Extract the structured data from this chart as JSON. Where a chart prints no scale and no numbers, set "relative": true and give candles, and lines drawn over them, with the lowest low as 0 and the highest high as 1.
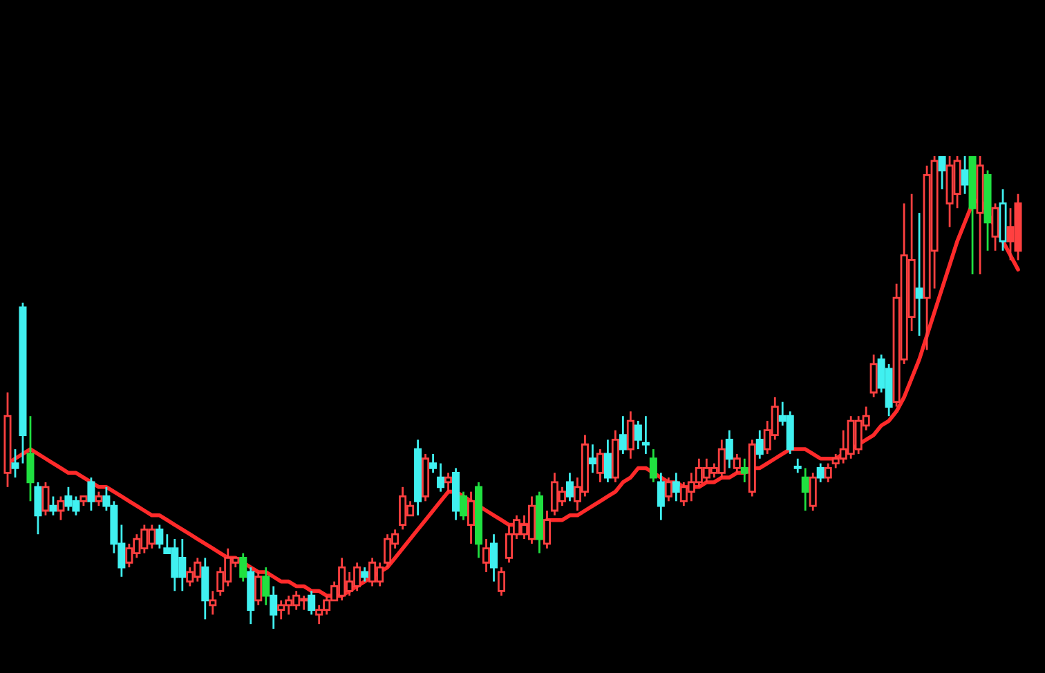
{
  "chart_data": {
    "type": "candlestick",
    "relative": true,
    "legend": false,
    "categories": [
      null,
      null,
      null,
      null,
      null,
      null,
      null,
      null,
      null,
      null,
      null,
      null,
      null,
      null,
      null,
      null,
      null,
      null,
      null,
      null,
      null,
      null,
      null,
      null,
      null,
      null,
      null,
      null,
      null,
      null,
      null,
      null,
      null,
      null,
      null,
      null,
      null,
      null,
      null,
      null,
      null,
      null,
      null,
      null,
      null,
      null,
      null,
      null,
      null,
      null,
      null,
      null,
      null,
      null,
      null,
      null,
      null,
      null,
      null,
      null,
      null,
      null,
      null,
      null,
      null,
      null,
      null,
      null,
      null,
      null,
      null,
      null,
      null,
      null,
      null,
      null,
      null,
      null,
      null,
      null,
      null,
      null,
      null,
      null,
      null,
      null,
      null,
      null,
      null,
      null,
      null,
      null,
      null,
      null,
      null,
      null,
      null,
      null,
      null,
      null,
      null,
      null,
      null,
      null,
      null,
      null,
      null,
      null,
      null,
      null,
      null,
      null,
      null,
      null,
      null,
      null,
      null,
      null,
      null,
      null,
      null,
      null,
      null,
      null,
      null,
      null,
      null,
      null,
      null,
      null,
      null,
      null,
      null,
      null
    ],
    "ohlc": [
      [
        0.33,
        0.5,
        0.3,
        0.45
      ],
      [
        0.35,
        0.38,
        0.32,
        0.34
      ],
      [
        0.68,
        0.69,
        0.35,
        0.41
      ],
      [
        0.37,
        0.45,
        0.27,
        0.31
      ],
      [
        0.3,
        0.31,
        0.2,
        0.24
      ],
      [
        0.25,
        0.31,
        0.24,
        0.3
      ],
      [
        0.26,
        0.28,
        0.24,
        0.25
      ],
      [
        0.25,
        0.28,
        0.23,
        0.27
      ],
      [
        0.28,
        0.3,
        0.25,
        0.26
      ],
      [
        0.27,
        0.28,
        0.24,
        0.25
      ],
      [
        0.27,
        0.28,
        0.26,
        0.28
      ],
      [
        0.31,
        0.32,
        0.25,
        0.27
      ],
      [
        0.27,
        0.29,
        0.26,
        0.28
      ],
      [
        0.28,
        0.3,
        0.25,
        0.26
      ],
      [
        0.26,
        0.27,
        0.16,
        0.18
      ],
      [
        0.18,
        0.22,
        0.11,
        0.13
      ],
      [
        0.14,
        0.18,
        0.13,
        0.17
      ],
      [
        0.16,
        0.2,
        0.15,
        0.19
      ],
      [
        0.17,
        0.22,
        0.16,
        0.21
      ],
      [
        0.18,
        0.22,
        0.17,
        0.21
      ],
      [
        0.21,
        0.22,
        0.17,
        0.18
      ],
      [
        0.17,
        0.2,
        0.16,
        0.16
      ],
      [
        0.17,
        0.19,
        0.08,
        0.11
      ],
      [
        0.15,
        0.19,
        0.08,
        0.11
      ],
      [
        0.1,
        0.13,
        0.09,
        0.12
      ],
      [
        0.11,
        0.15,
        0.1,
        0.14
      ],
      [
        0.13,
        0.15,
        0.02,
        0.06
      ],
      [
        0.05,
        0.08,
        0.03,
        0.06
      ],
      [
        0.08,
        0.13,
        0.07,
        0.12
      ],
      [
        0.1,
        0.17,
        0.09,
        0.15
      ],
      [
        0.14,
        0.15,
        0.13,
        0.15
      ],
      [
        0.15,
        0.16,
        0.1,
        0.11
      ],
      [
        0.12,
        0.13,
        0.01,
        0.04
      ],
      [
        0.06,
        0.12,
        0.05,
        0.11
      ],
      [
        0.11,
        0.13,
        0.05,
        0.07
      ],
      [
        0.07,
        0.09,
        0.0,
        0.03
      ],
      [
        0.04,
        0.06,
        0.02,
        0.05
      ],
      [
        0.05,
        0.07,
        0.03,
        0.06
      ],
      [
        0.05,
        0.08,
        0.04,
        0.07
      ],
      [
        0.06,
        0.07,
        0.04,
        0.06
      ],
      [
        0.07,
        0.08,
        0.03,
        0.04
      ],
      [
        0.03,
        0.05,
        0.01,
        0.04
      ],
      [
        0.04,
        0.07,
        0.03,
        0.06
      ],
      [
        0.06,
        0.1,
        0.06,
        0.09
      ],
      [
        0.07,
        0.15,
        0.06,
        0.13
      ],
      [
        0.08,
        0.12,
        0.07,
        0.1
      ],
      [
        0.09,
        0.14,
        0.08,
        0.13
      ],
      [
        0.12,
        0.13,
        0.1,
        0.11
      ],
      [
        0.1,
        0.15,
        0.09,
        0.14
      ],
      [
        0.1,
        0.14,
        0.09,
        0.13
      ],
      [
        0.14,
        0.2,
        0.13,
        0.19
      ],
      [
        0.18,
        0.21,
        0.17,
        0.2
      ],
      [
        0.22,
        0.3,
        0.21,
        0.28
      ],
      [
        0.24,
        0.27,
        0.24,
        0.26
      ],
      [
        0.38,
        0.4,
        0.24,
        0.27
      ],
      [
        0.28,
        0.37,
        0.27,
        0.36
      ],
      [
        0.35,
        0.37,
        0.33,
        0.34
      ],
      [
        0.32,
        0.35,
        0.29,
        0.3
      ],
      [
        0.31,
        0.33,
        0.29,
        0.32
      ],
      [
        0.33,
        0.34,
        0.23,
        0.25
      ],
      [
        0.28,
        0.29,
        0.23,
        0.24
      ],
      [
        0.22,
        0.29,
        0.18,
        0.27
      ],
      [
        0.3,
        0.31,
        0.15,
        0.18
      ],
      [
        0.14,
        0.19,
        0.12,
        0.17
      ],
      [
        0.18,
        0.2,
        0.1,
        0.13
      ],
      [
        0.08,
        0.13,
        0.07,
        0.12
      ],
      [
        0.15,
        0.22,
        0.14,
        0.2
      ],
      [
        0.2,
        0.24,
        0.19,
        0.23
      ],
      [
        0.2,
        0.24,
        0.19,
        0.22
      ],
      [
        0.19,
        0.28,
        0.18,
        0.26
      ],
      [
        0.28,
        0.29,
        0.16,
        0.19
      ],
      [
        0.18,
        0.25,
        0.17,
        0.23
      ],
      [
        0.25,
        0.33,
        0.24,
        0.31
      ],
      [
        0.27,
        0.3,
        0.26,
        0.29
      ],
      [
        0.31,
        0.33,
        0.27,
        0.28
      ],
      [
        0.27,
        0.32,
        0.25,
        0.3
      ],
      [
        0.29,
        0.41,
        0.28,
        0.39
      ],
      [
        0.36,
        0.39,
        0.33,
        0.35
      ],
      [
        0.33,
        0.38,
        0.31,
        0.37
      ],
      [
        0.37,
        0.4,
        0.31,
        0.32
      ],
      [
        0.32,
        0.42,
        0.31,
        0.4
      ],
      [
        0.41,
        0.45,
        0.37,
        0.38
      ],
      [
        0.38,
        0.46,
        0.36,
        0.44
      ],
      [
        0.43,
        0.44,
        0.38,
        0.4
      ],
      [
        0.39,
        0.45,
        0.37,
        0.39
      ],
      [
        0.36,
        0.38,
        0.31,
        0.32
      ],
      [
        0.31,
        0.33,
        0.23,
        0.26
      ],
      [
        0.28,
        0.32,
        0.27,
        0.31
      ],
      [
        0.31,
        0.33,
        0.27,
        0.29
      ],
      [
        0.27,
        0.31,
        0.26,
        0.3
      ],
      [
        0.29,
        0.33,
        0.27,
        0.31
      ],
      [
        0.31,
        0.36,
        0.3,
        0.34
      ],
      [
        0.32,
        0.36,
        0.31,
        0.34
      ],
      [
        0.33,
        0.35,
        0.32,
        0.34
      ],
      [
        0.33,
        0.4,
        0.32,
        0.38
      ],
      [
        0.4,
        0.42,
        0.34,
        0.36
      ],
      [
        0.34,
        0.37,
        0.33,
        0.36
      ],
      [
        0.34,
        0.36,
        0.31,
        0.33
      ],
      [
        0.29,
        0.4,
        0.28,
        0.39
      ],
      [
        0.4,
        0.42,
        0.36,
        0.37
      ],
      [
        0.38,
        0.44,
        0.37,
        0.42
      ],
      [
        0.41,
        0.49,
        0.4,
        0.47
      ],
      [
        0.45,
        0.48,
        0.43,
        0.44
      ],
      [
        0.45,
        0.46,
        0.37,
        0.38
      ],
      [
        0.34,
        0.36,
        0.33,
        0.34
      ],
      [
        0.32,
        0.34,
        0.25,
        0.29
      ],
      [
        0.26,
        0.33,
        0.25,
        0.32
      ],
      [
        0.34,
        0.35,
        0.31,
        0.32
      ],
      [
        0.32,
        0.35,
        0.31,
        0.34
      ],
      [
        0.35,
        0.37,
        0.34,
        0.36
      ],
      [
        0.36,
        0.42,
        0.35,
        0.38
      ],
      [
        0.37,
        0.45,
        0.36,
        0.44
      ],
      [
        0.38,
        0.45,
        0.37,
        0.44
      ],
      [
        0.43,
        0.47,
        0.42,
        0.45
      ],
      [
        0.5,
        0.58,
        0.49,
        0.56
      ],
      [
        0.57,
        0.58,
        0.5,
        0.51
      ],
      [
        0.55,
        0.56,
        0.45,
        0.47
      ],
      [
        0.48,
        0.73,
        0.47,
        0.7
      ],
      [
        0.57,
        0.9,
        0.56,
        0.79
      ],
      [
        0.66,
        0.92,
        0.63,
        0.78
      ],
      [
        0.72,
        0.88,
        0.62,
        0.7
      ],
      [
        0.7,
        0.98,
        0.59,
        0.96
      ],
      [
        0.8,
        1.0,
        0.72,
        0.99
      ],
      [
        1.0,
        1.0,
        0.93,
        0.97
      ],
      [
        0.9,
        1.0,
        0.85,
        0.98
      ],
      [
        0.92,
        1.0,
        0.89,
        0.99
      ],
      [
        0.97,
        1.0,
        0.92,
        0.94
      ],
      [
        1.0,
        1.0,
        0.75,
        0.89
      ],
      [
        0.88,
        1.0,
        0.75,
        0.98
      ],
      [
        0.96,
        0.97,
        0.8,
        0.86
      ],
      [
        0.83,
        0.9,
        0.8,
        0.89
      ],
      [
        0.82,
        0.93,
        0.8,
        0.9
      ],
      [
        0.85,
        0.89,
        0.78,
        0.82
      ],
      [
        0.9,
        0.92,
        0.78,
        0.8
      ]
    ],
    "colors": [
      "#ff4040",
      "#40f0f0",
      "#40f0f0",
      "#20e040",
      "#40f0f0",
      "#ff4040",
      "#40f0f0",
      "#ff4040",
      "#40f0f0",
      "#40f0f0",
      "#ff4040",
      "#40f0f0",
      "#ff4040",
      "#40f0f0",
      "#40f0f0",
      "#40f0f0",
      "#ff4040",
      "#ff4040",
      "#ff4040",
      "#ff4040",
      "#40f0f0",
      "#40f0f0",
      "#40f0f0",
      "#40f0f0",
      "#ff4040",
      "#ff4040",
      "#40f0f0",
      "#ff4040",
      "#ff4040",
      "#ff4040",
      "#ff4040",
      "#20e040",
      "#40f0f0",
      "#ff4040",
      "#20e040",
      "#40f0f0",
      "#ff4040",
      "#ff4040",
      "#ff4040",
      "#ff4040",
      "#40f0f0",
      "#ff4040",
      "#ff4040",
      "#ff4040",
      "#ff4040",
      "#ff4040",
      "#ff4040",
      "#40f0f0",
      "#ff4040",
      "#ff4040",
      "#ff4040",
      "#ff4040",
      "#ff4040",
      "#ff4040",
      "#40f0f0",
      "#ff4040",
      "#40f0f0",
      "#40f0f0",
      "#ff4040",
      "#40f0f0",
      "#20e040",
      "#ff4040",
      "#20e040",
      "#ff4040",
      "#40f0f0",
      "#ff4040",
      "#ff4040",
      "#ff4040",
      "#ff4040",
      "#ff4040",
      "#20e040",
      "#ff4040",
      "#ff4040",
      "#ff4040",
      "#40f0f0",
      "#ff4040",
      "#ff4040",
      "#40f0f0",
      "#ff4040",
      "#40f0f0",
      "#ff4040",
      "#40f0f0",
      "#ff4040",
      "#40f0f0",
      "#40f0f0",
      "#20e040",
      "#40f0f0",
      "#ff4040",
      "#40f0f0",
      "#ff4040",
      "#ff4040",
      "#ff4040",
      "#ff4040",
      "#ff4040",
      "#ff4040",
      "#40f0f0",
      "#ff4040",
      "#20e040",
      "#ff4040",
      "#40f0f0",
      "#ff4040",
      "#ff4040",
      "#40f0f0",
      "#40f0f0",
      "#40f0f0",
      "#20e040",
      "#ff4040",
      "#40f0f0",
      "#ff4040",
      "#ff4040",
      "#ff4040",
      "#ff4040",
      "#ff4040",
      "#ff4040",
      "#ff4040",
      "#40f0f0",
      "#40f0f0",
      "#ff4040",
      "#ff4040",
      "#ff4040",
      "#40f0f0",
      "#ff4040",
      "#ff4040",
      "#40f0f0",
      "#ff4040",
      "#ff4040",
      "#40f0f0",
      "#20e040",
      "#ff4040",
      "#20e040",
      "#ff4040",
      "#40f0f0",
      "#ff4040",
      "#ff4040"
    ],
    "series": [
      {
        "type": "line",
        "color": "#ff2a2a",
        "values": [
          0.35,
          0.36,
          0.37,
          0.38,
          0.37,
          0.36,
          0.35,
          0.34,
          0.33,
          0.33,
          0.32,
          0.31,
          0.3,
          0.3,
          0.29,
          0.28,
          0.27,
          0.26,
          0.25,
          0.24,
          0.24,
          0.23,
          0.22,
          0.21,
          0.2,
          0.19,
          0.18,
          0.17,
          0.16,
          0.15,
          0.15,
          0.14,
          0.13,
          0.12,
          0.12,
          0.11,
          0.1,
          0.1,
          0.09,
          0.09,
          0.08,
          0.08,
          0.07,
          0.07,
          0.07,
          0.08,
          0.09,
          0.1,
          0.11,
          0.12,
          0.13,
          0.15,
          0.17,
          0.19,
          0.21,
          0.23,
          0.25,
          0.27,
          0.29,
          0.29,
          0.28,
          0.27,
          0.26,
          0.25,
          0.24,
          0.23,
          0.22,
          0.22,
          0.22,
          0.22,
          0.22,
          0.23,
          0.23,
          0.23,
          0.24,
          0.24,
          0.25,
          0.26,
          0.27,
          0.28,
          0.29,
          0.31,
          0.32,
          0.34,
          0.34,
          0.33,
          0.32,
          0.31,
          0.31,
          0.3,
          0.3,
          0.3,
          0.31,
          0.31,
          0.32,
          0.32,
          0.33,
          0.33,
          0.34,
          0.34,
          0.35,
          0.36,
          0.37,
          0.38,
          0.38,
          0.38,
          0.37,
          0.36,
          0.36,
          0.36,
          0.37,
          0.38,
          0.39,
          0.4,
          0.41,
          0.43,
          0.44,
          0.46,
          0.49,
          0.53,
          0.57,
          0.62,
          0.67,
          0.72,
          0.77,
          0.82,
          0.86,
          0.9,
          0.91,
          0.88,
          0.85,
          0.82,
          0.79,
          0.76
        ]
      }
    ]
  }
}
